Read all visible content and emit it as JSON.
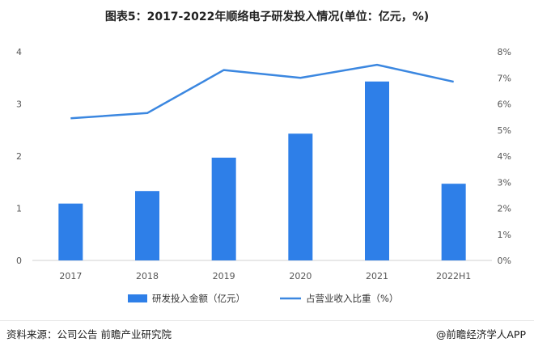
{
  "title": "图表5：2017-2022年顺络电子研发投入情况(单位：亿元，%)",
  "chart_data": {
    "type": "bar",
    "categories": [
      "2017",
      "2018",
      "2019",
      "2020",
      "2021",
      "2022H1"
    ],
    "series": [
      {
        "name": "研发投入金额（亿元）",
        "type": "bar",
        "axis": "left",
        "values": [
          1.09,
          1.33,
          1.97,
          2.43,
          3.43,
          1.47
        ],
        "color": "#2e7fe8"
      },
      {
        "name": "占营业收入比重（%）",
        "type": "line",
        "axis": "right",
        "values": [
          5.45,
          5.65,
          7.3,
          7.0,
          7.5,
          6.85
        ],
        "color": "#3b87e0"
      }
    ],
    "left_axis": {
      "ylim": [
        0,
        4
      ],
      "ticks": [
        "0",
        "1",
        "2",
        "3",
        "4"
      ]
    },
    "right_axis": {
      "ylim": [
        0,
        8
      ],
      "ticks": [
        "0%",
        "1%",
        "2%",
        "3%",
        "4%",
        "5%",
        "6%",
        "7%",
        "8%"
      ]
    },
    "legend_position": "bottom"
  },
  "footer": {
    "source": "资料来源：公司公告 前瞻产业研究院",
    "brand": "@前瞻经济学人APP"
  }
}
